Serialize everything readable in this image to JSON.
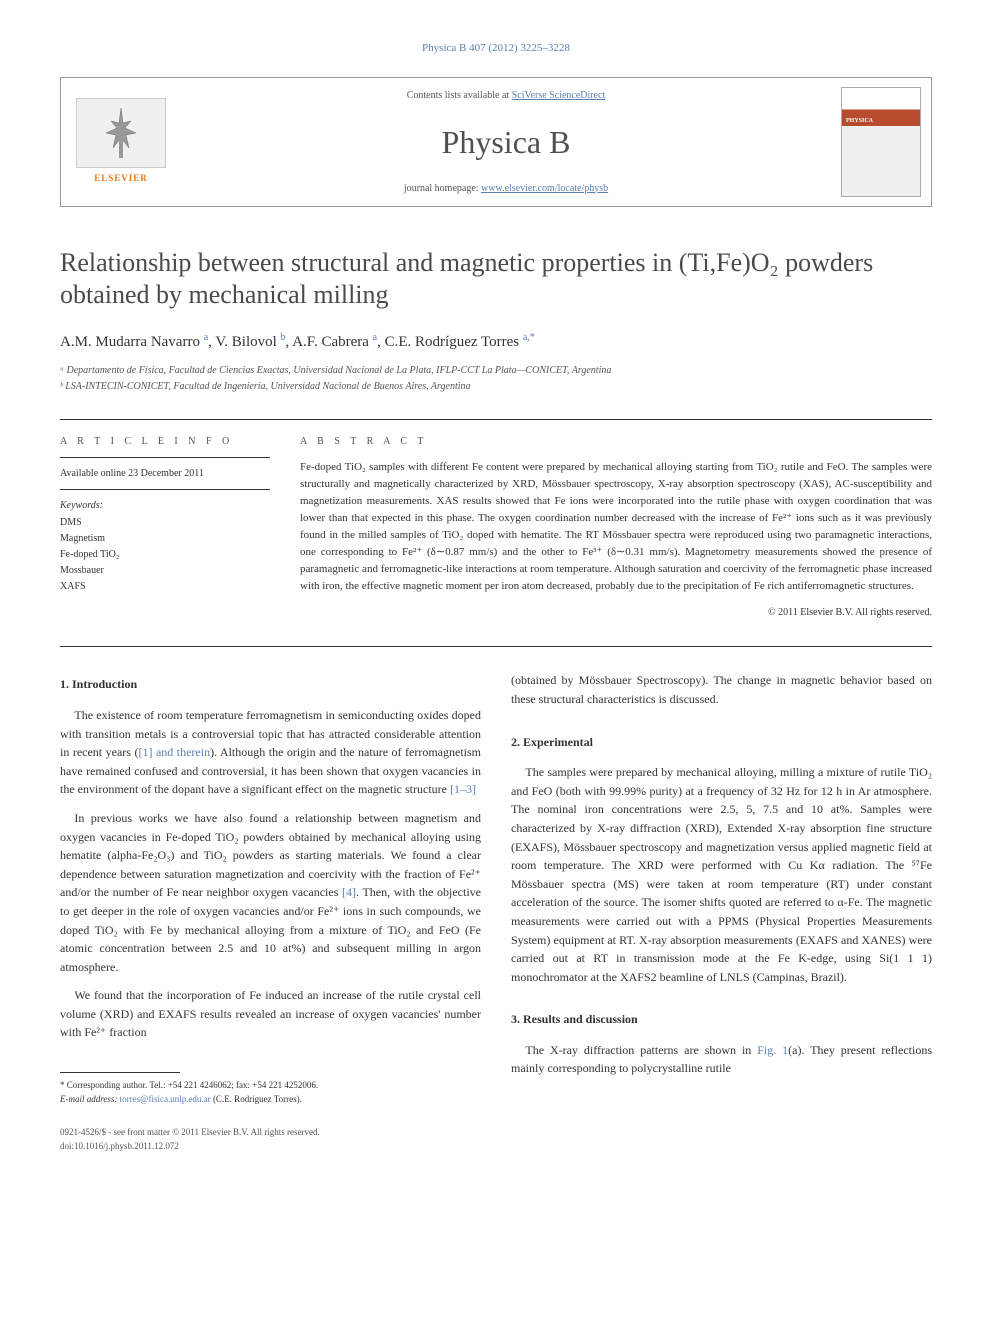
{
  "journal_ref": "Physica B 407 (2012) 3225–3228",
  "header": {
    "contents_prefix": "Contents lists available at ",
    "contents_link": "SciVerse ScienceDirect",
    "journal_name": "Physica B",
    "homepage_prefix": "journal homepage: ",
    "homepage_link": "www.elsevier.com/locate/physb",
    "elsevier_label": "ELSEVIER",
    "cover_label": "PHYSICA"
  },
  "title": "Relationship between structural and magnetic properties in (Ti,Fe)O₂ powders obtained by mechanical milling",
  "authors_html": "A.M. Mudarra Navarro <sup>a</sup>, V. Bilovol <sup>b</sup>, A.F. Cabrera <sup>a</sup>, C.E. Rodríguez Torres <sup>a,*</sup>",
  "affiliations": [
    "ᵃ Departamento de Física, Facultad de Ciencias Exactas, Universidad Nacional de La Plata, IFLP-CCT La Plata—CONICET, Argentina",
    "ᵇ LSA-INTECIN-CONICET, Facultad de Ingeniería, Universidad Nacional de Buenos Aires, Argentina"
  ],
  "article_info": {
    "heading": "a r t i c l e   i n f o",
    "available": "Available online 23 December 2011",
    "kw_label": "Keywords:",
    "keywords": [
      "DMS",
      "Magnetism",
      "Fe-doped TiO₂",
      "Mossbauer",
      "XAFS"
    ]
  },
  "abstract": {
    "heading": "a b s t r a c t",
    "text": "Fe-doped TiO₂ samples with different Fe content were prepared by mechanical alloying starting from TiO₂ rutile and FeO. The samples were structurally and magnetically characterized by XRD, Mössbauer spectroscopy, X-ray absorption spectroscopy (XAS), AC-susceptibility and magnetization measurements. XAS results showed that Fe ions were incorporated into the rutile phase with oxygen coordination that was lower than that expected in this phase. The oxygen coordination number decreased with the increase of Fe²⁺ ions such as it was previously found in the milled samples of TiO₂ doped with hematite. The RT Mössbauer spectra were reproduced using two paramagnetic interactions, one corresponding to Fe²⁺ (δ∼0.87 mm/s) and the other to Fe³⁺ (δ∼0.31 mm/s). Magnetometry measurements showed the presence of paramagnetic and ferromagnetic-like interactions at room temperature. Although saturation and coercivity of the ferromagnetic phase increased with iron, the effective magnetic moment per iron atom decreased, probably due to the precipitation of Fe rich antiferromagnetic structures.",
    "copyright": "© 2011 Elsevier B.V. All rights reserved."
  },
  "sections": {
    "intro": {
      "heading": "1.  Introduction",
      "p1": "The existence of room temperature ferromagnetism in semiconducting oxides doped with transition metals is a controversial topic that has attracted considerable attention in recent years ([1] and therein). Although the origin and the nature of ferromagnetism have remained confused and controversial, it has been shown that oxygen vacancies in the environment of the dopant have a significant effect on the magnetic structure [1–3]",
      "p2": "In previous works we have also found a relationship between magnetism and oxygen vacancies in Fe-doped TiO₂ powders obtained by mechanical alloying using hematite (alpha-Fe₂O₃) and TiO₂ powders as starting materials. We found a clear dependence between saturation magnetization and coercivity with the fraction of Fe²⁺ and/or the number of Fe near neighbor oxygen vacancies [4]. Then, with the objective to get deeper in the role of oxygen vacancies and/or Fe²⁺ ions in such compounds, we doped TiO₂ with Fe by mechanical alloying from a mixture of TiO₂ and FeO (Fe atomic concentration between 2.5 and 10 at%) and subsequent milling in argon atmosphere.",
      "p3": "We found that the incorporation of Fe induced an increase of the rutile crystal cell volume (XRD) and EXAFS results revealed an increase of oxygen vacancies' number with Fe²⁺ fraction",
      "p3cont": "(obtained by Mössbauer Spectroscopy). The change in magnetic behavior based on these structural characteristics is discussed."
    },
    "exp": {
      "heading": "2.  Experimental",
      "p1": "The samples were prepared by mechanical alloying, milling a mixture of rutile TiO₂ and FeO (both with 99.99% purity) at a frequency of 32 Hz for 12 h in Ar atmosphere. The nominal iron concentrations were 2.5, 5, 7.5 and 10 at%. Samples were characterized by X-ray diffraction (XRD), Extended X-ray absorption fine structure (EXAFS), Mössbauer spectroscopy and magnetization versus applied magnetic field at room temperature. The XRD were performed with Cu Kα radiation. The ⁵⁷Fe Mössbauer spectra (MS) were taken at room temperature (RT) under constant acceleration of the source. The isomer shifts quoted are referred to α-Fe. The magnetic measurements were carried out with a PPMS (Physical Properties Measurements System) equipment at RT. X-ray absorption measurements (EXAFS and XANES) were carried out at RT in transmission mode at the Fe K-edge, using Si(1 1 1) monochromator at the XAFS2 beamline of LNLS (Campinas, Brazil)."
    },
    "results": {
      "heading": "3.  Results and discussion",
      "p1": "The X-ray diffraction patterns are shown in Fig. 1(a). They present reflections mainly corresponding to polycrystalline rutile"
    }
  },
  "footnote": {
    "corr": "* Corresponding author. Tel.: +54 221 4246062; fax: +54 221 4252006.",
    "email_label": "E-mail address: ",
    "email": "torres@fisica.unlp.edu.ar",
    "email_paren": " (C.E. Rodríguez Torres)."
  },
  "footer": {
    "issn": "0921-4526/$ - see front matter © 2011 Elsevier B.V. All rights reserved.",
    "doi": "doi:10.1016/j.physb.2011.12.072"
  },
  "colors": {
    "link": "#5a7fb5",
    "elsevier": "#e67817",
    "text": "#333333",
    "heading": "#4a4a4a"
  }
}
